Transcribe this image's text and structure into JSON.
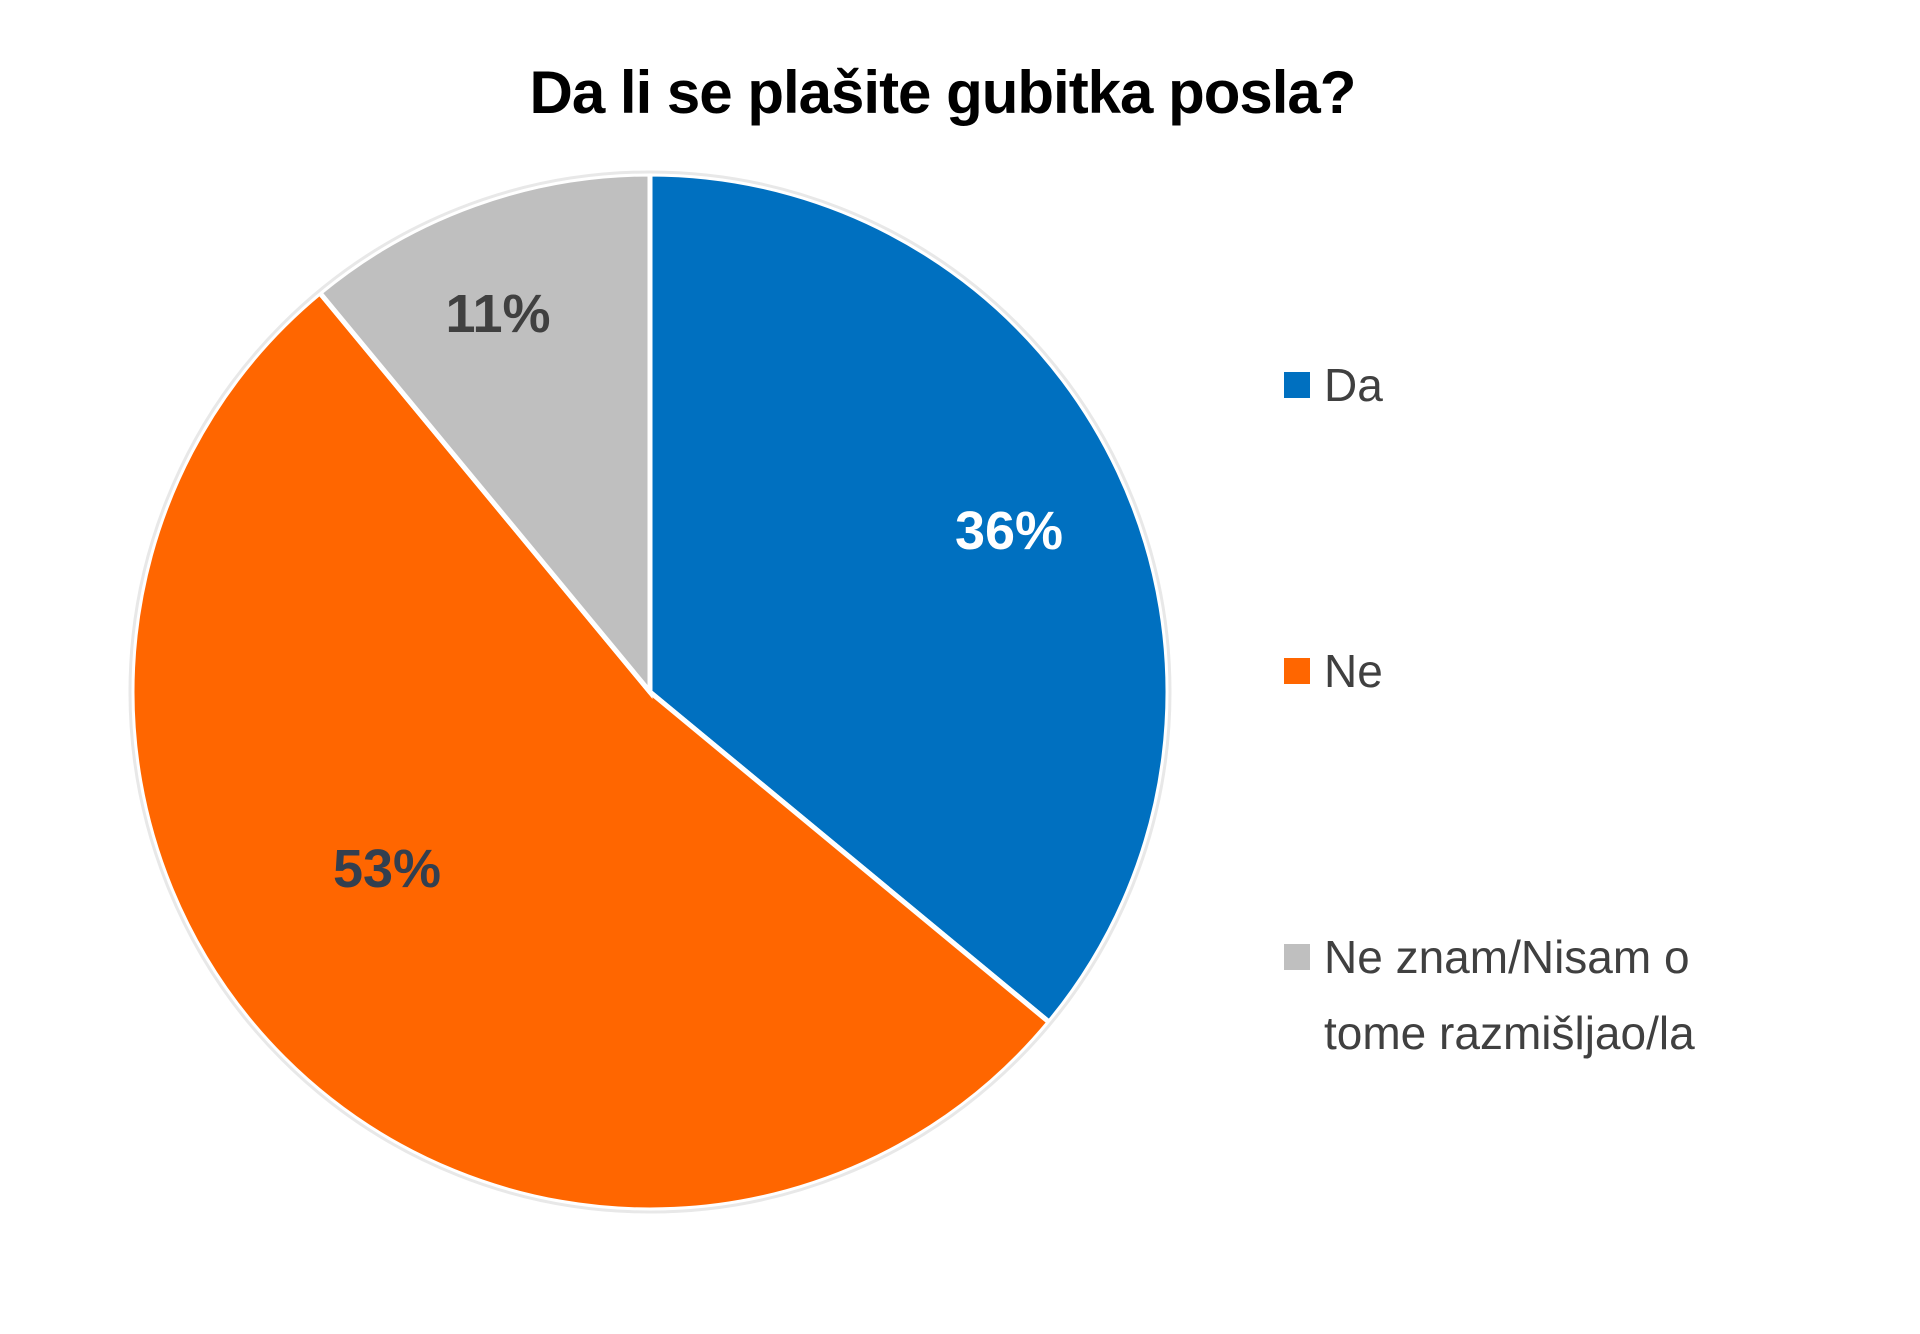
{
  "chart_data": {
    "type": "pie",
    "title": "Da li se plašite gubitka posla?",
    "start_angle_deg": 0,
    "direction": "clockwise",
    "slices": [
      {
        "label": "Da",
        "value": 36,
        "data_label": "36%",
        "color": "#0070C0",
        "label_color": "#FFFFFF"
      },
      {
        "label": "Ne",
        "value": 53,
        "data_label": "53%",
        "color": "#FF6600",
        "label_color": "#333F4F"
      },
      {
        "label": "Ne znam/Nisam o tome razmišljao/la",
        "label_lines": [
          "Ne znam/Nisam o",
          "tome razmišljao/la"
        ],
        "value": 11,
        "data_label": "11%",
        "color": "#BFBFBF",
        "label_color": "#404040"
      }
    ],
    "legend_position": "right"
  }
}
